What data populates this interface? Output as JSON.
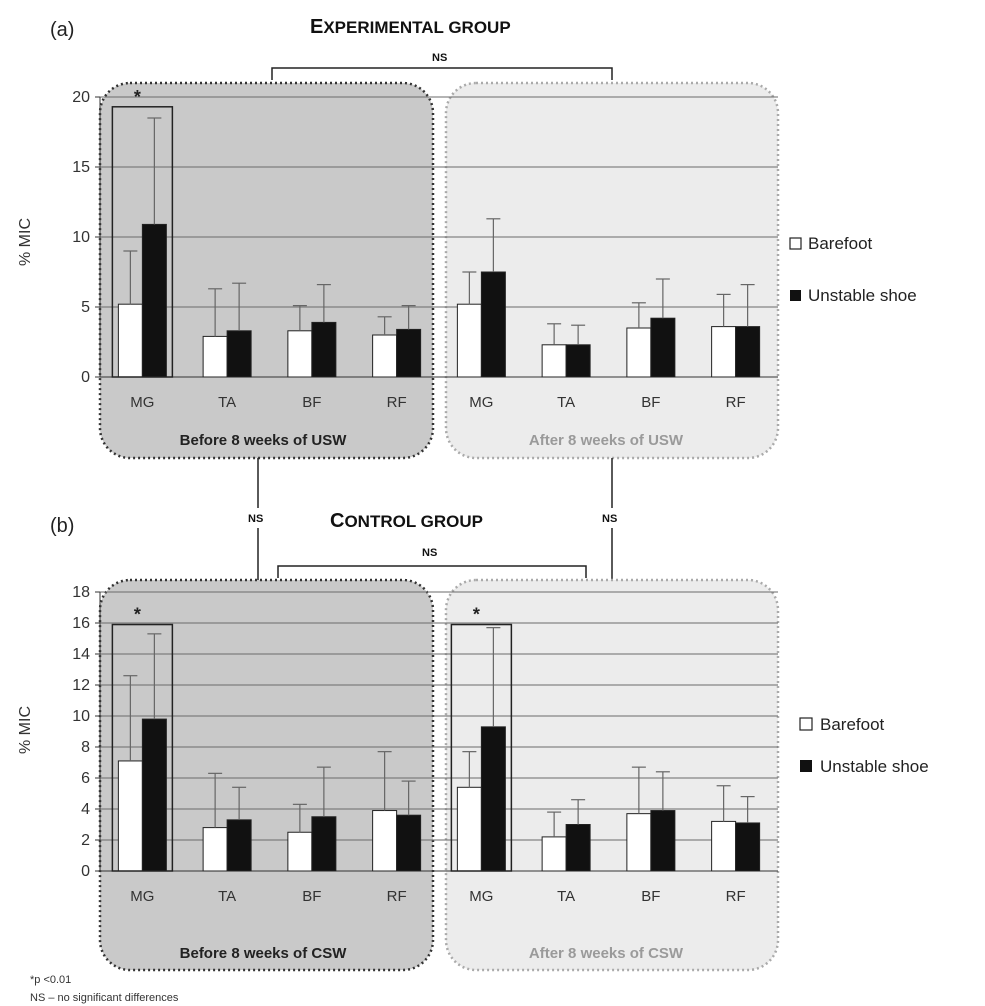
{
  "panel_a": {
    "label": "(a)",
    "title_cap": "E",
    "title_rest": "XPERIMENTAL GROUP",
    "ns_label": "NS",
    "ylabel": "% MIC",
    "groups": [
      "Before 8 weeks of USW",
      "After 8 weeks of USW"
    ]
  },
  "panel_b": {
    "label": "(b)",
    "title_cap": "C",
    "title_rest": "ONTROL GROUP",
    "ns_label": "NS",
    "ylabel": "% MIC",
    "groups": [
      "Before 8 weeks of CSW",
      "After 8 weeks of CSW"
    ]
  },
  "between_ns_left": "NS",
  "between_ns_right": "NS",
  "legend": {
    "barefoot": "Barefoot",
    "unstable": "Unstable shoe"
  },
  "footnotes": {
    "sig": "*p <0.01",
    "ns": "NS – no significant differences"
  },
  "colors": {
    "barefoot": "#ffffff",
    "unstable": "#111111",
    "dark_box": "#c8c8c8",
    "light_box": "#ececec"
  },
  "chart_data": [
    {
      "type": "bar",
      "title": "EXPERIMENTAL GROUP",
      "ylabel": "% MIC",
      "ylim": [
        0,
        20
      ],
      "yticks": [
        0,
        5,
        10,
        15,
        20
      ],
      "grid": true,
      "legend": "right",
      "categories": [
        "MG",
        "TA",
        "BF",
        "RF",
        "MG",
        "TA",
        "BF",
        "RF"
      ],
      "series": [
        {
          "name": "Barefoot",
          "values": [
            5.2,
            2.9,
            3.3,
            3.0,
            5.2,
            2.3,
            3.5,
            3.6
          ],
          "errors": [
            3.8,
            3.4,
            1.8,
            1.3,
            2.3,
            1.5,
            1.8,
            2.3
          ]
        },
        {
          "name": "Unstable shoe",
          "values": [
            10.9,
            3.3,
            3.9,
            3.4,
            7.5,
            2.3,
            4.2,
            3.6
          ],
          "errors": [
            7.6,
            3.4,
            2.7,
            1.7,
            3.8,
            1.4,
            2.8,
            3.0
          ]
        }
      ],
      "annotations": [
        "*"
      ]
    },
    {
      "type": "bar",
      "title": "CONTROL GROUP",
      "ylabel": "% MIC",
      "ylim": [
        0,
        18
      ],
      "yticks": [
        0,
        2,
        4,
        6,
        8,
        10,
        12,
        14,
        16,
        18
      ],
      "grid": true,
      "legend": "right",
      "categories": [
        "MG",
        "TA",
        "BF",
        "RF",
        "MG",
        "TA",
        "BF",
        "RF"
      ],
      "series": [
        {
          "name": "Barefoot",
          "values": [
            7.1,
            2.8,
            2.5,
            3.9,
            5.4,
            2.2,
            3.7,
            3.2
          ],
          "errors": [
            5.5,
            3.5,
            1.8,
            3.8,
            2.3,
            1.6,
            3.0,
            2.3
          ]
        },
        {
          "name": "Unstable shoe",
          "values": [
            9.8,
            3.3,
            3.5,
            3.6,
            9.3,
            3.0,
            3.9,
            3.1
          ],
          "errors": [
            5.5,
            2.1,
            3.2,
            2.2,
            6.4,
            1.6,
            2.5,
            1.7
          ]
        }
      ],
      "annotations": [
        "*",
        "*"
      ]
    }
  ]
}
